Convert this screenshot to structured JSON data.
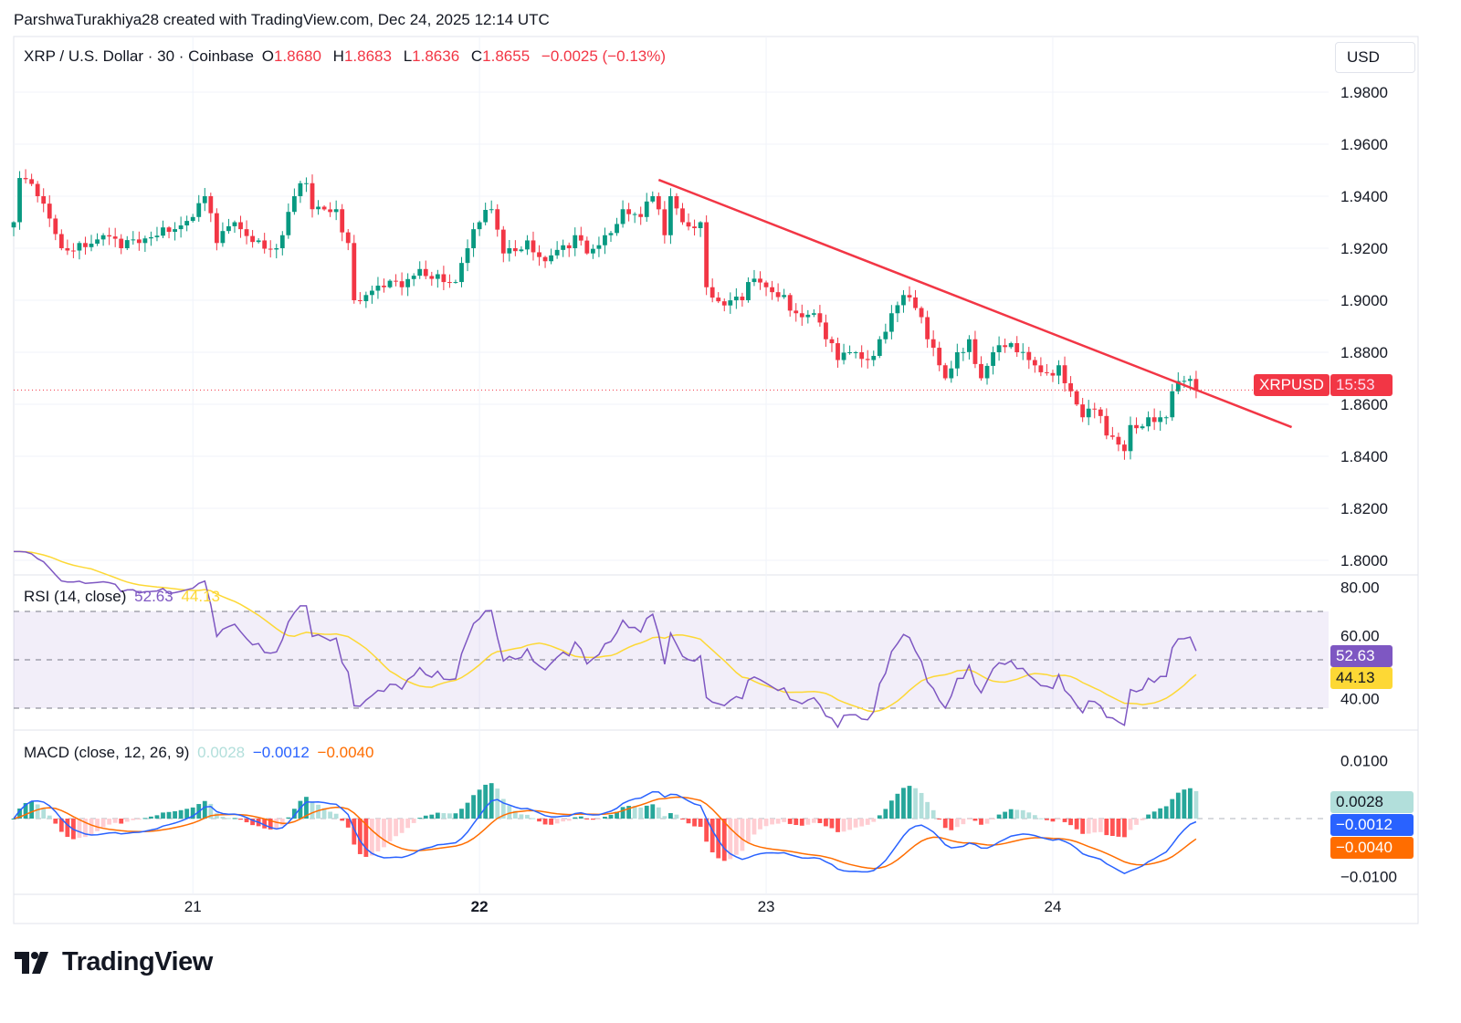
{
  "credit": "ParshwaTurakhiya28 created with TradingView.com, Dec 24, 2025 12:14 UTC",
  "brand": "TradingView",
  "colors": {
    "up": "#089981",
    "down": "#F23645",
    "rsi": "#7E57C2",
    "rsi_ma": "#FDD835",
    "macd": "#2962FF",
    "signal": "#FF6D00",
    "trendline": "#F23645"
  },
  "chart_data": {
    "type": "candlestick",
    "symbol": "XRP / U.S. Dollar · 30 · Coinbase",
    "ohlc_labels": {
      "o_label": "O",
      "o": "1.8680",
      "h_label": "H",
      "h": "1.8683",
      "l_label": "L",
      "l": "1.8636",
      "c_label": "C",
      "c": "1.8655",
      "change": "−0.0025 (−0.13%)"
    },
    "currency": "USD",
    "price_ticks": [
      "1.9800",
      "1.9600",
      "1.9400",
      "1.9200",
      "1.9000",
      "1.8800",
      "1.8600",
      "1.8400",
      "1.8200",
      "1.8000"
    ],
    "ylim": [
      1.7955,
      1.9925
    ],
    "x_ticks": [
      {
        "label": "21",
        "index": 30,
        "bold": false
      },
      {
        "label": "22",
        "index": 78,
        "bold": true
      },
      {
        "label": "23",
        "index": 126,
        "bold": false
      },
      {
        "label": "24",
        "index": 174,
        "bold": false
      }
    ],
    "interval_minutes": 30,
    "close_path": [
      [
        0,
        1.93
      ],
      [
        1,
        1.947
      ],
      [
        4,
        1.94
      ],
      [
        8,
        1.92
      ],
      [
        11,
        1.922
      ],
      [
        15,
        1.925
      ],
      [
        18,
        1.92
      ],
      [
        21,
        1.922
      ],
      [
        25,
        1.928
      ],
      [
        30,
        1.932
      ],
      [
        32,
        1.94
      ],
      [
        34,
        1.922
      ],
      [
        37,
        1.93
      ],
      [
        41,
        1.923
      ],
      [
        44,
        1.92
      ],
      [
        45,
        1.925
      ],
      [
        47,
        1.94
      ],
      [
        49,
        1.945
      ],
      [
        50,
        1.935
      ],
      [
        54,
        1.935
      ],
      [
        56,
        1.922
      ],
      [
        57,
        1.9
      ],
      [
        59,
        1.902
      ],
      [
        62,
        1.905
      ],
      [
        65,
        1.905
      ],
      [
        68,
        1.912
      ],
      [
        71,
        1.91
      ],
      [
        74,
        1.907
      ],
      [
        76,
        1.92
      ],
      [
        78,
        1.93
      ],
      [
        80,
        1.935
      ],
      [
        82,
        1.918
      ],
      [
        83,
        1.92
      ],
      [
        86,
        1.923
      ],
      [
        89,
        1.915
      ],
      [
        93,
        1.92
      ],
      [
        94,
        1.925
      ],
      [
        96,
        1.918
      ],
      [
        99,
        1.925
      ],
      [
        102,
        1.935
      ],
      [
        105,
        1.932
      ],
      [
        107,
        1.94
      ],
      [
        109,
        1.925
      ],
      [
        110,
        1.94
      ],
      [
        112,
        1.93
      ],
      [
        115,
        1.93
      ],
      [
        116,
        1.905
      ],
      [
        119,
        1.898
      ],
      [
        122,
        1.9
      ],
      [
        123,
        1.907
      ],
      [
        126,
        1.905
      ],
      [
        129,
        1.902
      ],
      [
        131,
        1.895
      ],
      [
        134,
        1.895
      ],
      [
        136,
        1.885
      ],
      [
        138,
        1.877
      ],
      [
        141,
        1.88
      ],
      [
        143,
        1.877
      ],
      [
        145,
        1.885
      ],
      [
        147,
        1.895
      ],
      [
        149,
        1.902
      ],
      [
        151,
        1.897
      ],
      [
        153,
        1.885
      ],
      [
        155,
        1.875
      ],
      [
        156,
        1.87
      ],
      [
        158,
        1.88
      ],
      [
        160,
        1.885
      ],
      [
        162,
        1.87
      ],
      [
        164,
        1.88
      ],
      [
        166,
        1.882
      ],
      [
        168,
        1.88
      ],
      [
        170,
        1.877
      ],
      [
        173,
        1.872
      ],
      [
        175,
        1.875
      ],
      [
        177,
        1.865
      ],
      [
        179,
        1.855
      ],
      [
        181,
        1.858
      ],
      [
        183,
        1.848
      ],
      [
        186,
        1.842
      ],
      [
        187,
        1.852
      ],
      [
        190,
        1.855
      ],
      [
        192,
        1.855
      ],
      [
        193,
        1.855
      ],
      [
        194,
        1.865
      ],
      [
        196,
        1.869
      ],
      [
        198,
        1.8655
      ]
    ],
    "last_price": 1.8655,
    "last_label": {
      "symbol": "XRPUSD",
      "countdown": "15:53"
    },
    "trendline": [
      [
        108,
        1.9463
      ],
      [
        214,
        1.8512
      ]
    ],
    "rsi": {
      "title": "RSI (14, close)",
      "value": "52.63",
      "ma_value": "44.13",
      "ticks": [
        "80.00",
        "60.00",
        "40.00"
      ],
      "band": [
        30,
        70
      ],
      "mid": 50,
      "ylim": [
        24,
        84
      ]
    },
    "macd": {
      "title": "MACD (close, 12, 26, 9)",
      "hist": "0.0028",
      "macd": "−0.0012",
      "signal": "−0.0040",
      "ticks": [
        "0.0100",
        "−0.0100"
      ],
      "ylim": [
        -0.0125,
        0.0125
      ]
    }
  }
}
